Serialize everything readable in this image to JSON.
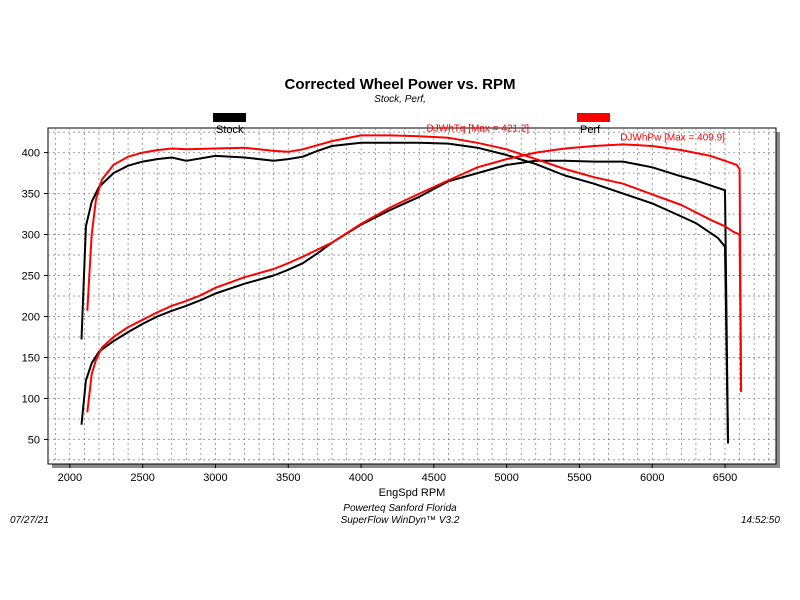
{
  "chart_data": {
    "type": "line",
    "title": "Corrected Wheel Power vs. RPM",
    "subtitle": "Stock, Perf,",
    "xlabel": "EngSpd RPM",
    "ylabel": "",
    "xlim": [
      1850,
      6850
    ],
    "ylim": [
      20,
      430
    ],
    "x_ticks": [
      "2000",
      "2500",
      "3000",
      "3500",
      "4000",
      "4500",
      "5000",
      "5500",
      "6000",
      "6500"
    ],
    "x_tick_values": [
      2000,
      2500,
      3000,
      3500,
      4000,
      4500,
      5000,
      5500,
      6000,
      6500
    ],
    "y_ticks": [
      "50",
      "100",
      "150",
      "200",
      "250",
      "300",
      "350",
      "400"
    ],
    "y_tick_values": [
      50,
      100,
      150,
      200,
      250,
      300,
      350,
      400
    ],
    "grid": true,
    "legend": [
      {
        "name": "Stock",
        "color": "#000000"
      },
      {
        "name": "Perf",
        "color": "#ff0000"
      }
    ],
    "annotations": [
      {
        "text": "DJWhTq [Max = 421.2]",
        "color": "#ff0000",
        "x": 4450,
        "y": 421
      },
      {
        "text": "DJWhPw [Max = 409.9]",
        "color": "#ff0000",
        "x": 5780,
        "y": 410
      }
    ],
    "series": [
      {
        "name": "Stock",
        "measure": "DJWhTq",
        "color": "#000000",
        "x": [
          2080,
          2110,
          2150,
          2200,
          2300,
          2400,
          2500,
          2600,
          2700,
          2800,
          3000,
          3200,
          3400,
          3500,
          3600,
          3700,
          3800,
          4000,
          4200,
          4400,
          4600,
          4800,
          5000,
          5200,
          5400,
          5600,
          5800,
          6000,
          6200,
          6300,
          6400,
          6450,
          6500,
          6520
        ],
        "y": [
          172,
          310,
          340,
          358,
          375,
          384,
          389,
          392,
          394,
          390,
          396,
          394,
          390,
          392,
          395,
          402,
          408,
          412,
          412,
          412,
          411,
          406,
          397,
          386,
          372,
          362,
          350,
          338,
          322,
          314,
          302,
          296,
          285,
          45
        ]
      },
      {
        "name": "Stock",
        "measure": "DJWhPw",
        "color": "#000000",
        "x": [
          2080,
          2110,
          2150,
          2200,
          2300,
          2400,
          2500,
          2600,
          2700,
          2800,
          2900,
          3000,
          3200,
          3400,
          3500,
          3600,
          3700,
          3800,
          4000,
          4200,
          4400,
          4600,
          4800,
          5000,
          5200,
          5400,
          5600,
          5800,
          6000,
          6200,
          6300,
          6400,
          6500,
          6520
        ],
        "y": [
          68,
          122,
          143,
          157,
          170,
          181,
          191,
          200,
          207,
          213,
          220,
          228,
          240,
          250,
          257,
          265,
          277,
          290,
          312,
          330,
          346,
          365,
          375,
          385,
          390,
          390,
          389,
          389,
          382,
          371,
          366,
          360,
          354,
          45
        ]
      },
      {
        "name": "Perf",
        "measure": "DJWhTq",
        "color": "#ff0000",
        "x": [
          2120,
          2150,
          2180,
          2220,
          2300,
          2400,
          2500,
          2600,
          2700,
          2800,
          3000,
          3200,
          3400,
          3500,
          3600,
          3800,
          4000,
          4200,
          4400,
          4600,
          4800,
          5000,
          5200,
          5400,
          5600,
          5800,
          6000,
          6200,
          6400,
          6500,
          6560,
          6600,
          6610
        ],
        "y": [
          207,
          300,
          343,
          367,
          385,
          395,
          400,
          403,
          405,
          404,
          405,
          406,
          402,
          401,
          404,
          414,
          421,
          421,
          420,
          418,
          412,
          404,
          392,
          380,
          370,
          362,
          349,
          336,
          318,
          310,
          303,
          300,
          108
        ]
      },
      {
        "name": "Perf",
        "measure": "DJWhPw",
        "color": "#ff0000",
        "x": [
          2120,
          2150,
          2180,
          2220,
          2300,
          2400,
          2500,
          2600,
          2700,
          2800,
          2900,
          3000,
          3200,
          3400,
          3500,
          3600,
          3800,
          4000,
          4200,
          4400,
          4600,
          4800,
          5000,
          5200,
          5400,
          5600,
          5800,
          6000,
          6200,
          6400,
          6500,
          6580,
          6600,
          6610
        ],
        "y": [
          83,
          130,
          147,
          162,
          175,
          187,
          196,
          205,
          213,
          219,
          226,
          235,
          248,
          258,
          265,
          273,
          290,
          313,
          333,
          350,
          366,
          382,
          392,
          400,
          405,
          408,
          410,
          408,
          403,
          396,
          390,
          385,
          380,
          108
        ]
      }
    ]
  },
  "header": {
    "title": "Corrected Wheel Power vs. RPM",
    "subtitle": "Stock, Perf,",
    "legend_stock": "Stock",
    "legend_perf": "Perf"
  },
  "footer": {
    "date": "07/27/21",
    "time": "14:52:50",
    "line1": "Powerteq Sanford Florida",
    "line2": "SuperFlow WinDyn™ V3.2"
  }
}
